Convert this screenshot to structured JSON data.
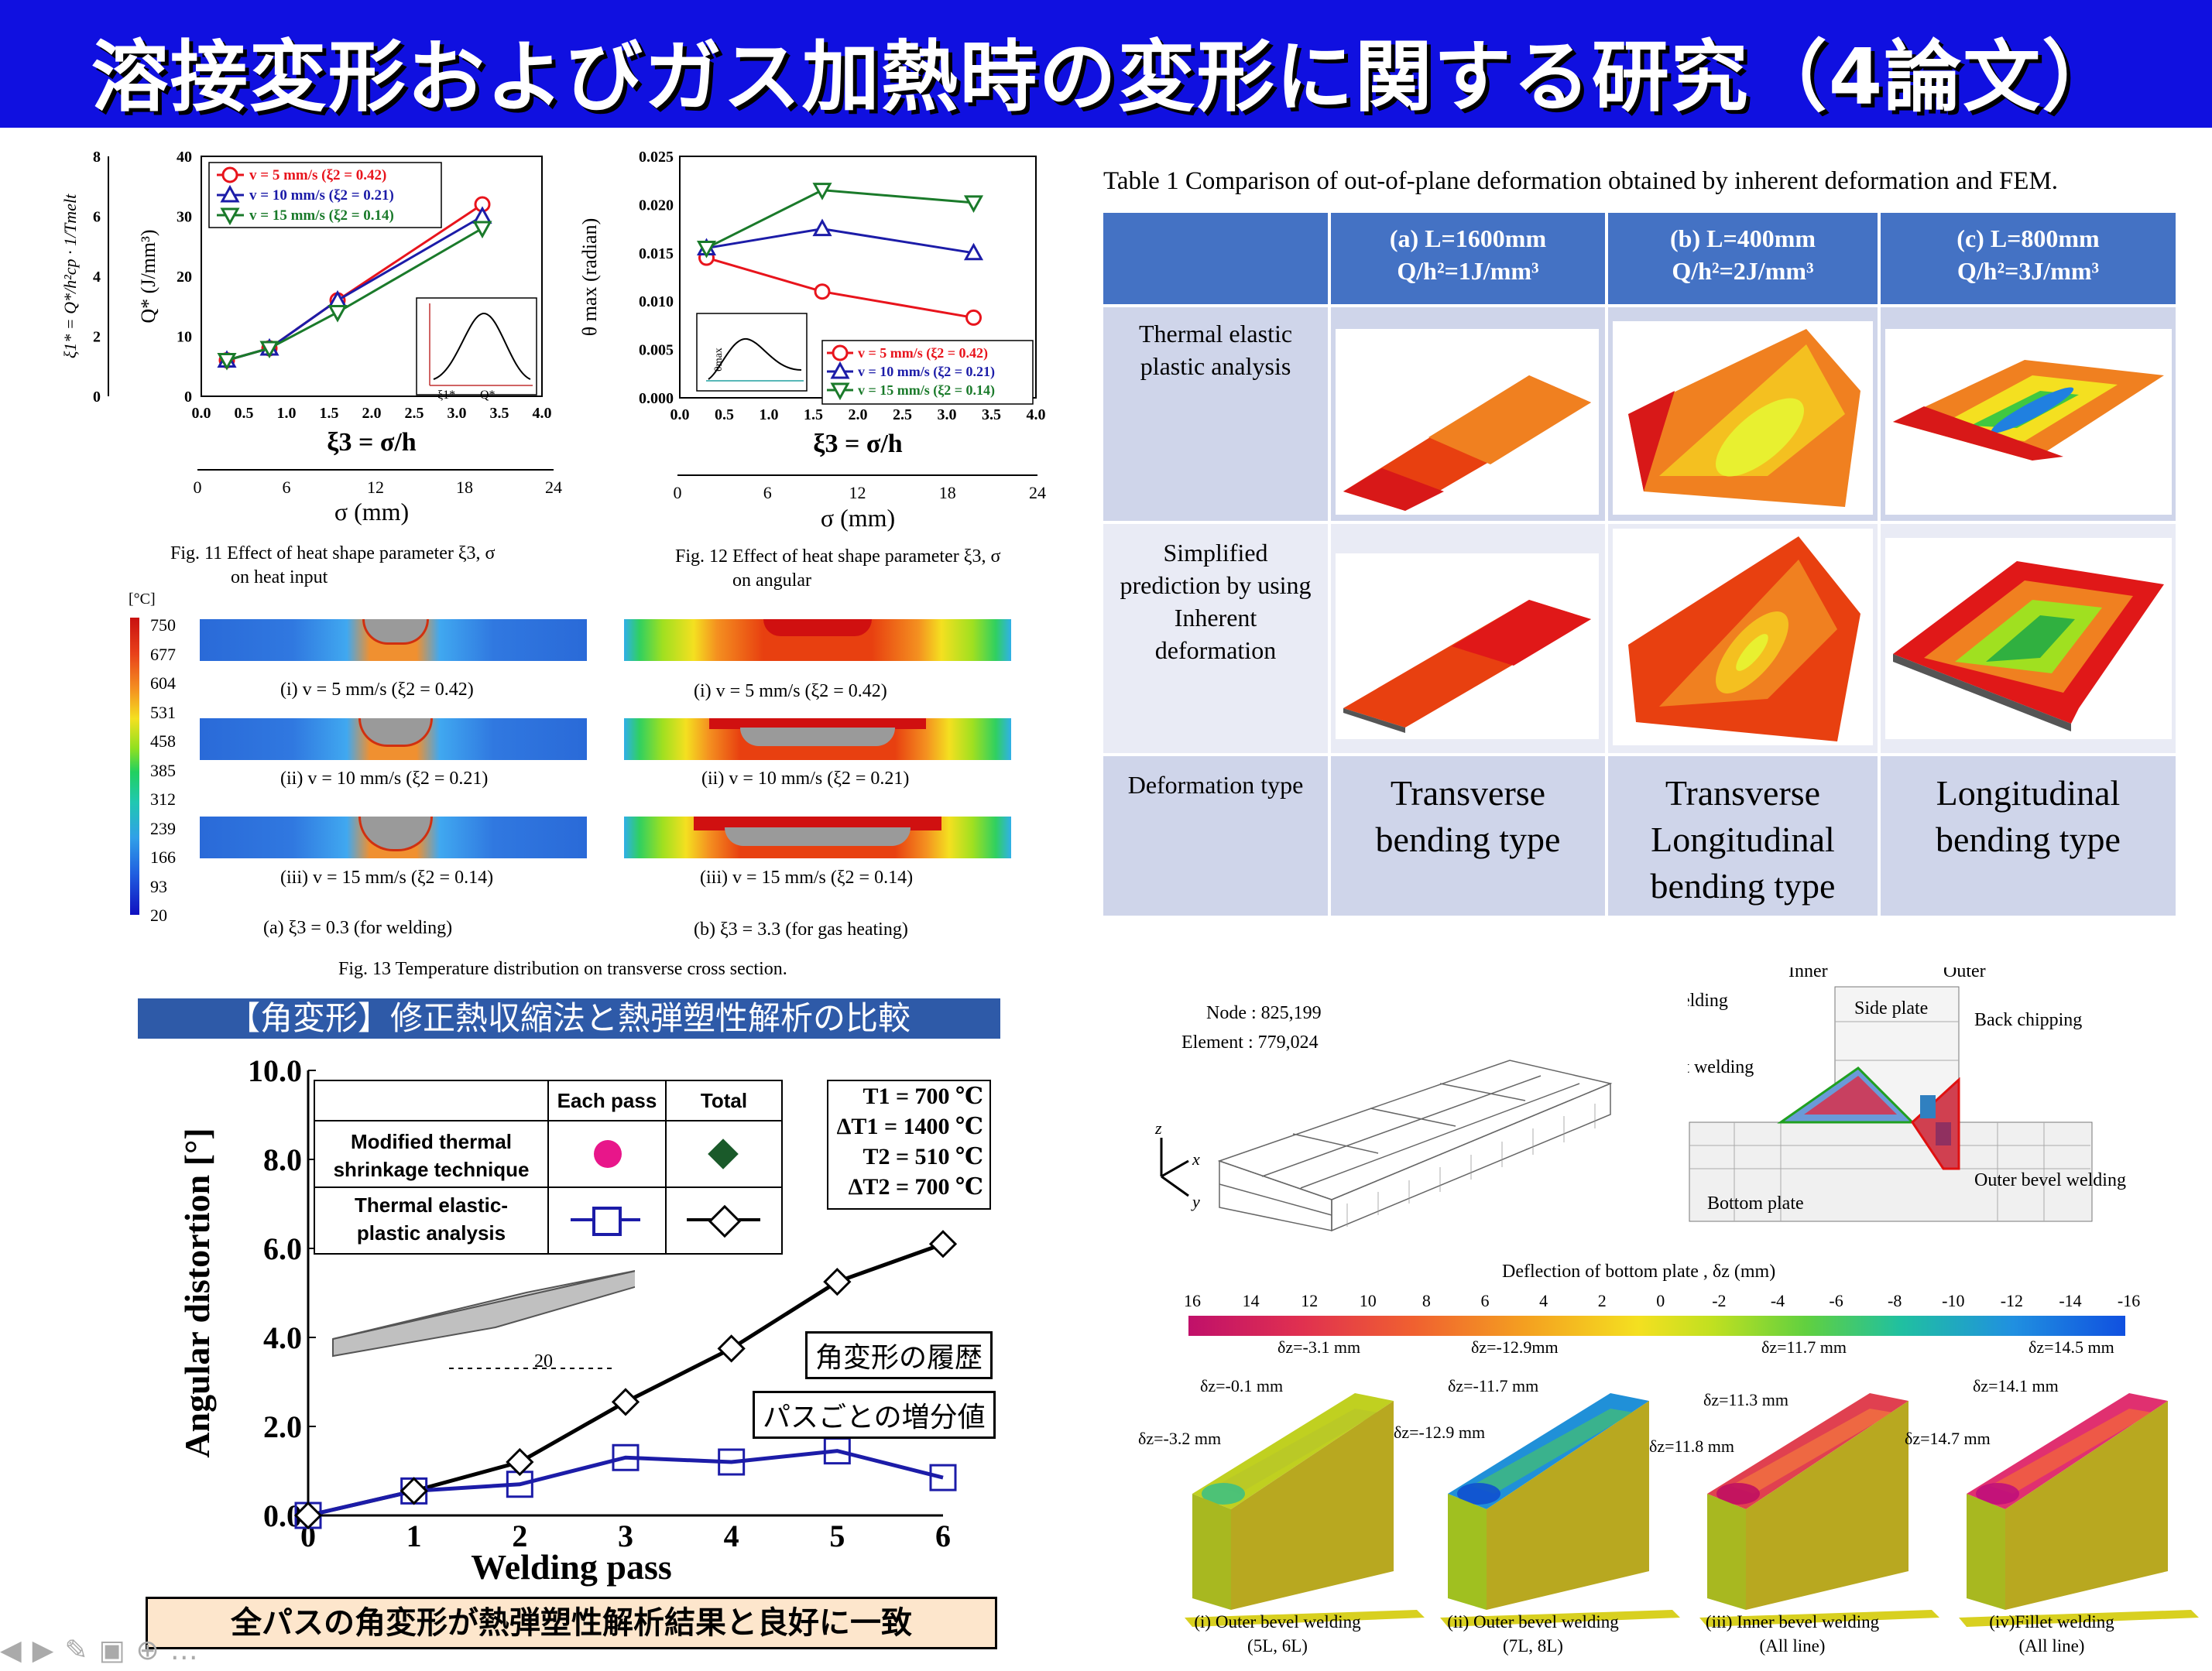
{
  "header": {
    "title": "溶接変形およびガス加熱時の変形に関する研究（4論文）",
    "bg": "#1010e0"
  },
  "fig11": {
    "caption_l1": "Fig. 11 Effect of heat shape parameter  ξ3,  σ",
    "caption_l2": "on heat input",
    "ylabel_left": "ξ1* = Q*/h²cp · 1/Tmelt",
    "ylabel": "Q* (J/mm³)",
    "xlabel": "ξ3 = σ/h",
    "xlabel2": "σ (mm)",
    "legend": [
      "v =   5 mm/s (ξ2 = 0.42)",
      "v = 10 mm/s (ξ2 = 0.21)",
      "v = 15 mm/s (ξ2 = 0.14)"
    ],
    "inset_labels": [
      "ξ1*",
      "Q*"
    ]
  },
  "fig12": {
    "caption_l1": "Fig. 12 Effect of heat shape parameter  ξ3,  σ",
    "caption_l2": "on angular",
    "ylabel": "θ max (radian)",
    "xlabel": "ξ3 = σ/h",
    "xlabel2": "σ (mm)",
    "inset_label": "θmax"
  },
  "fig13": {
    "unit": "[°C]",
    "scale": [
      "750",
      "677",
      "604",
      "531",
      "458",
      "385",
      "312",
      "239",
      "166",
      "93",
      "20"
    ],
    "left_labels": [
      "(i) v = 5 mm/s (ξ2 = 0.42)",
      "(ii) v = 10 mm/s (ξ2 = 0.21)",
      "(iii) v = 15 mm/s (ξ2 = 0.14)"
    ],
    "right_labels": [
      "(i) v = 5 mm/s (ξ2 = 0.42)",
      "(ii) v = 10 mm/s (ξ2 = 0.21)",
      "(iii) v = 15 mm/s (ξ2 = 0.14)"
    ],
    "col_a": "(a)  ξ3 = 0.3 (for welding)",
    "col_b": "(b)  ξ3 = 3.3 (for gas heating)",
    "caption": "Fig. 13 Temperature distribution on transverse cross section."
  },
  "table1": {
    "caption": "Table 1 Comparison of out-of-plane deformation obtained by inherent deformation and FEM.",
    "col_heads": [
      {
        "l1": "(a) L=1600mm",
        "l2": "Q/h²=1J/mm³"
      },
      {
        "l1": "(b) L=400mm",
        "l2": "Q/h²=2J/mm³"
      },
      {
        "l1": "(c) L=800mm",
        "l2": "Q/h²=3J/mm³"
      }
    ],
    "row1": "Thermal elastic plastic analysis",
    "row2": "Simplified prediction by using Inherent deformation",
    "row3": "Deformation type",
    "types": [
      "Transverse bending type",
      "Transverse Longitudinal bending type",
      "Longitudinal bending type"
    ]
  },
  "angular": {
    "banner": "【角変形】修正熱収縮法と熱弾塑性解析の比較",
    "ylabel": "Angular distortion [°]",
    "xlabel": "Welding pass",
    "legend_each": "Each pass",
    "legend_total": "Total",
    "row1": "Modified thermal shrinkage technique",
    "row2": "Thermal elastic-plastic analysis",
    "params": [
      "T1   = 700 ℃",
      "ΔT1 = 1400 ℃",
      "T2   = 510 ℃",
      "ΔT2 = 700 ℃"
    ],
    "label_history": "角変形の履歴",
    "label_increment": "パスごとの増分値",
    "footer": "全パスの角変形が熱弾塑性解析結果と良好に一致",
    "angle_label": "20"
  },
  "mesh": {
    "node": "Node : 825,199",
    "element": "Element : 779,024",
    "labels": [
      "Inner",
      "Outer",
      "Inner bevel welding",
      "Side plate",
      "Back chipping",
      "Inner fillet welding",
      "Outer bevel welding",
      "Bottom plate"
    ],
    "axes": [
      "z",
      "x",
      "y"
    ]
  },
  "deflection": {
    "title": "Deflection of bottom plate ,  δz (mm)",
    "scale": [
      "16",
      "14",
      "12",
      "10",
      "8",
      "6",
      "4",
      "2",
      "0",
      "-2",
      "-4",
      "-6",
      "-8",
      "-10",
      "-12",
      "-14",
      "-16"
    ],
    "boxes": [
      {
        "v1": "δz=-3.1  mm",
        "v2": "δz=-0.1 mm",
        "v3": "δz=-3.2 mm",
        "cap1": "(i) Outer bevel welding",
        "cap2": "(5L, 6L)"
      },
      {
        "v1": "δz=-12.9mm",
        "v2": "δz=-11.7 mm",
        "v3": "δz=-12.9 mm",
        "cap1": "(ii) Outer bevel welding",
        "cap2": "(7L, 8L)"
      },
      {
        "v1": "δz=11.7  mm",
        "v2": "δz=11.3 mm",
        "v3": "δz=11.8 mm",
        "cap1": "(iii) Inner bevel welding",
        "cap2": "(All line)"
      },
      {
        "v1": "δz=14.5  mm",
        "v2": "δz=14.1 mm",
        "v3": "δz=14.7 mm",
        "cap1": "(iv)Fillet welding",
        "cap2": "(All line)"
      }
    ]
  },
  "chart_data": [
    {
      "type": "line",
      "title": "",
      "xlabel": "ξ3 = σ/h",
      "ylabel": "Q* (J/mm³)",
      "xlim": [
        0,
        4
      ],
      "ylim": [
        0,
        40
      ],
      "x": [
        0.3,
        0.8,
        1.6,
        3.3
      ],
      "series": [
        {
          "name": "v =   5 mm/s (ξ2 = 0.42)",
          "color": "#e8141c",
          "values": [
            6,
            8,
            16,
            32
          ]
        },
        {
          "name": "v = 10 mm/s (ξ2 = 0.21)",
          "color": "#1c1ca8",
          "values": [
            6,
            8,
            16,
            30
          ]
        },
        {
          "name": "v = 15 mm/s (ξ2 = 0.14)",
          "color": "#1a7a2a",
          "values": [
            6,
            8,
            14,
            28
          ]
        }
      ],
      "xticks": [
        "0.0",
        "0.5",
        "1.0",
        "1.5",
        "2.0",
        "2.5",
        "3.0",
        "3.5",
        "4.0"
      ],
      "yticks": [
        "0",
        "10",
        "20",
        "30",
        "40"
      ],
      "yticks_left": [
        "0",
        "2",
        "4",
        "6",
        "8"
      ],
      "x2ticks": [
        "0",
        "6",
        "12",
        "18",
        "24"
      ]
    },
    {
      "type": "line",
      "title": "",
      "xlabel": "ξ3 = σ/h",
      "ylabel": "θ max (radian)",
      "xlim": [
        0,
        4
      ],
      "ylim": [
        0,
        0.025
      ],
      "x": [
        0.3,
        1.6,
        3.3
      ],
      "series": [
        {
          "name": "v =   5 mm/s (ξ2 = 0.42)",
          "color": "#e8141c",
          "values": [
            0.0145,
            0.011,
            0.0083
          ]
        },
        {
          "name": "v = 10 mm/s (ξ2 = 0.21)",
          "color": "#1c1ca8",
          "values": [
            0.0155,
            0.0175,
            0.015
          ]
        },
        {
          "name": "v = 15 mm/s (ξ2 = 0.14)",
          "color": "#1a7a2a",
          "values": [
            0.0155,
            0.0215,
            0.0202
          ]
        }
      ],
      "xticks": [
        "0.0",
        "0.5",
        "1.0",
        "1.5",
        "2.0",
        "2.5",
        "3.0",
        "3.5",
        "4.0"
      ],
      "yticks": [
        "0.000",
        "0.005",
        "0.010",
        "0.015",
        "0.020",
        "0.025"
      ],
      "x2ticks": [
        "0",
        "6",
        "12",
        "18",
        "24"
      ]
    },
    {
      "type": "line",
      "title": "",
      "xlabel": "Welding pass",
      "ylabel": "Angular distortion [°]",
      "xlim": [
        0,
        6
      ],
      "ylim": [
        0,
        10
      ],
      "x": [
        0,
        1,
        2,
        3,
        4,
        5,
        6
      ],
      "series": [
        {
          "name": "Modified thermal shrinkage technique / Total",
          "color": "#000000",
          "values": [
            0,
            0.55,
            1.2,
            2.55,
            3.75,
            5.25,
            6.1
          ]
        },
        {
          "name": "Thermal elastic-plastic analysis / Each pass",
          "color": "#1c1ca8",
          "values": [
            0,
            0.55,
            0.7,
            1.3,
            1.2,
            1.45,
            0.85
          ]
        }
      ],
      "xticks": [
        "0",
        "1",
        "2",
        "3",
        "4",
        "5",
        "6"
      ],
      "yticks": [
        "0.0",
        "2.0",
        "4.0",
        "6.0",
        "8.0",
        "10.0"
      ]
    }
  ]
}
